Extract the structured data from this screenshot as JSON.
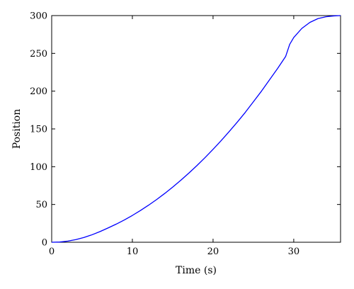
{
  "chart_data": {
    "type": "line",
    "title": "",
    "xlabel": "Time (s)",
    "ylabel": "Position",
    "xlim": [
      0,
      35.8
    ],
    "ylim": [
      0,
      300
    ],
    "xticks": [
      0,
      10,
      20,
      30
    ],
    "yticks": [
      0,
      50,
      100,
      150,
      200,
      250,
      300
    ],
    "xtick_labels": [
      "0",
      "10",
      "20",
      "30"
    ],
    "ytick_labels": [
      "0",
      "50",
      "100",
      "150",
      "200",
      "250",
      "300"
    ],
    "grid": false,
    "legend": "none",
    "series": [
      {
        "color": "#0000ff",
        "x": [
          0,
          1,
          2,
          3,
          4,
          5,
          6,
          7,
          8,
          9,
          10,
          11,
          12,
          13,
          14,
          15,
          16,
          17,
          18,
          19,
          20,
          21,
          22,
          23,
          24,
          25,
          26,
          27,
          28,
          29,
          29.5,
          30,
          31,
          32,
          33,
          34,
          35,
          35.8
        ],
        "y": [
          0,
          0.3,
          1.5,
          3.5,
          6.3,
          9.9,
          14.2,
          19,
          24,
          29.5,
          35.5,
          42,
          49,
          56.5,
          64.5,
          73,
          82,
          91.5,
          101.5,
          112,
          123,
          134.5,
          146.5,
          159,
          172,
          186,
          200,
          215,
          230,
          246,
          262,
          271,
          283,
          291,
          296,
          298.5,
          299.6,
          300
        ]
      }
    ]
  }
}
